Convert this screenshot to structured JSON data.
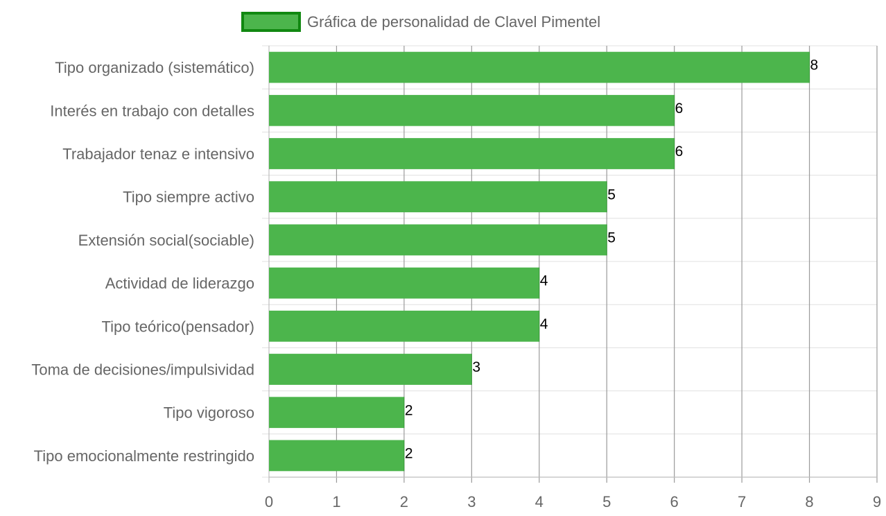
{
  "chart_data": {
    "type": "bar",
    "orientation": "horizontal",
    "categories": [
      "Tipo organizado (sistemático)",
      "Interés en trabajo con detalles",
      "Trabajador tenaz e intensivo",
      "Tipo siempre activo",
      "Extensión social(sociable)",
      "Actividad de liderazgo",
      "Tipo teórico(pensador)",
      "Toma de decisiones/impulsividad",
      "Tipo vigoroso",
      "Tipo emocionalmente restringido"
    ],
    "series": [
      {
        "name": "Gráfica de personalidad de Clavel Pimentel",
        "values": [
          8,
          6,
          6,
          5,
          5,
          4,
          4,
          3,
          2,
          2
        ],
        "color": "#4cb54c",
        "border_color": "#118811"
      }
    ],
    "xlim": [
      0,
      9
    ],
    "x_ticks": [
      "0",
      "1",
      "2",
      "3",
      "4",
      "5",
      "6",
      "7",
      "8",
      "9"
    ],
    "grid": true,
    "legend_position": "top",
    "data_labels": true
  }
}
